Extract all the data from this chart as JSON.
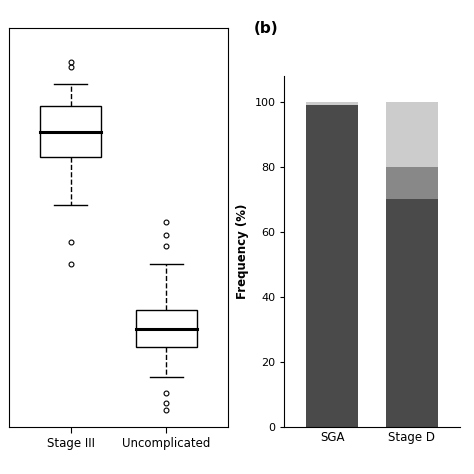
{
  "title_b": "(b)",
  "box_left_label": "Stage III",
  "box_right_label": "Uncomplicated",
  "stage3": {
    "median": 0.8,
    "q1": 0.73,
    "q3": 0.87,
    "whisker_low": 0.6,
    "whisker_high": 0.93,
    "outliers_high": [
      0.975,
      0.99
    ],
    "outliers_low": [
      0.5,
      0.44
    ]
  },
  "uncomplicated": {
    "median": 0.265,
    "q1": 0.215,
    "q3": 0.315,
    "whisker_low": 0.135,
    "whisker_high": 0.44,
    "outliers_high": [
      0.49,
      0.52,
      0.555
    ],
    "outliers_low": [
      0.09,
      0.065,
      0.045
    ]
  },
  "bar_categories": [
    "SGA",
    "Stage D"
  ],
  "bar_dark": [
    99,
    70
  ],
  "bar_mid": [
    0,
    10
  ],
  "bar_light": [
    1,
    20
  ],
  "bar_color_dark": "#4a4a4a",
  "bar_color_mid": "#888888",
  "bar_color_light": "#cccccc",
  "ylabel_b": "Frequency (%)",
  "yticks_b": [
    0,
    20,
    40,
    60,
    80,
    100
  ],
  "background_color": "#ffffff"
}
